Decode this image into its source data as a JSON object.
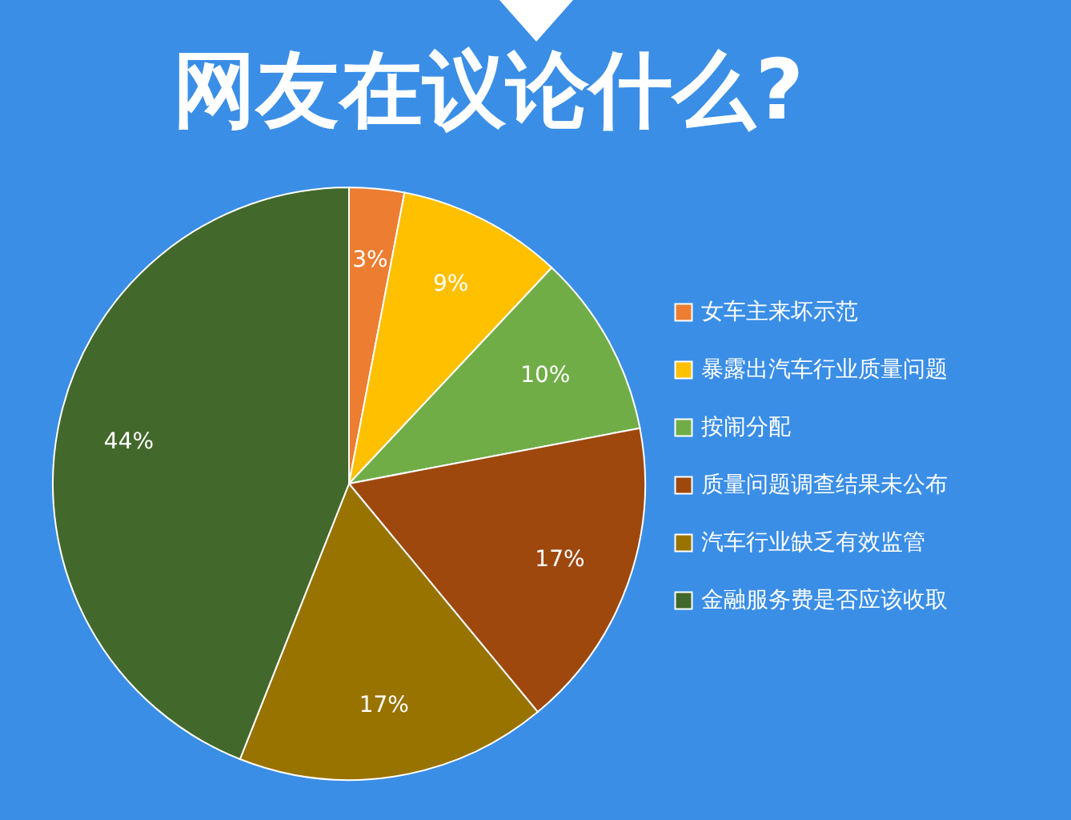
{
  "chart_data": {
    "type": "pie",
    "title": "网友在议论什么?",
    "categories": [
      "女车主来坏示范",
      "暴露出汽车行业质量问题",
      "按闹分配",
      "质量问题调查结果未公布",
      "汽车行业缺乏有效监管",
      "金融服务费是否应该收取"
    ],
    "values": [
      3,
      9,
      10,
      17,
      17,
      44
    ],
    "colors": [
      "#ed7d31",
      "#ffc000",
      "#70ad47",
      "#9e480e",
      "#997300",
      "#43682b"
    ],
    "value_labels": [
      "3%",
      "9%",
      "10%",
      "17%",
      "17%",
      "44%"
    ],
    "legend": "right"
  }
}
